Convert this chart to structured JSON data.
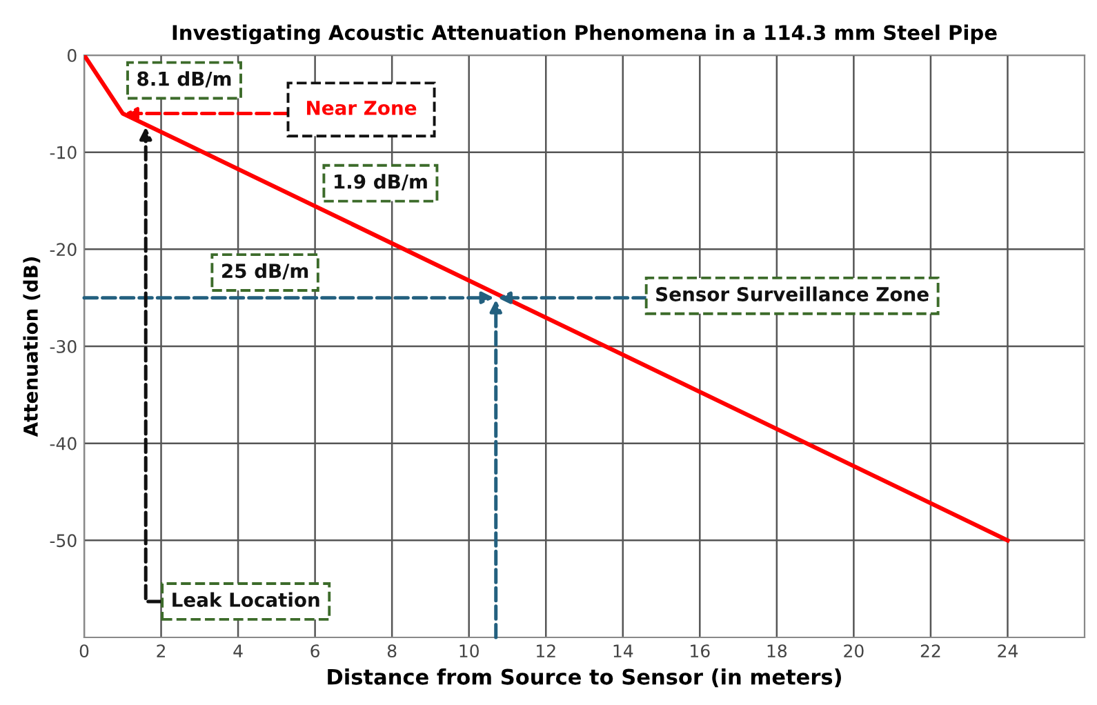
{
  "chart_data": {
    "type": "line",
    "title": "Investigating Acoustic Attenuation Phenomena in a 114.3 mm Steel Pipe",
    "xlabel": "Distance from Source to Sensor (in meters)",
    "ylabel": "Attenuation (dB)",
    "x": [
      0,
      1,
      24
    ],
    "series": [
      {
        "color": "#ff0000",
        "values": [
          0,
          -6,
          -50
        ]
      }
    ],
    "xlim": [
      0,
      26
    ],
    "xticks": [
      0,
      2,
      4,
      6,
      8,
      10,
      12,
      14,
      16,
      18,
      20,
      22,
      24
    ],
    "ylim": [
      -60,
      0
    ],
    "yticks": [
      0,
      -10,
      -20,
      -30,
      -40,
      -50
    ],
    "grid": true,
    "marker": "none",
    "line_style": "solid",
    "annotations": [
      "8.1 dB/m",
      {
        "text": "Near Zone",
        "x": 1,
        "y": -6
      },
      "1.9 dB/m",
      "25 dB/m",
      {
        "text": "Sensor Surveillance Zone",
        "x": 10.7,
        "y": -25
      },
      {
        "text": "Leak Location",
        "x": 1.6,
        "y": -7.2
      }
    ]
  }
}
